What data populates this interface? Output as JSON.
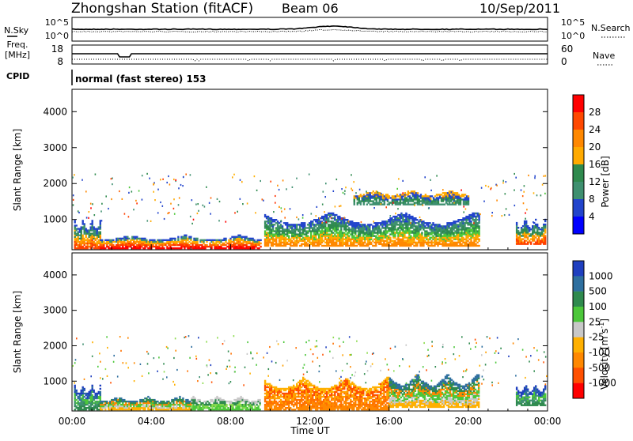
{
  "header": {
    "station_title": "Zhongshan Station (fitACF)",
    "beam": "Beam 06",
    "date": "10/Sep/2011"
  },
  "aux_panels": {
    "nsky_label": "N.Sky",
    "nsearch_label": "N.Search",
    "nsky_ticks": [
      "10^5",
      "10^0"
    ],
    "nsearch_ticks": [
      "10^5",
      "10^0"
    ],
    "freq_label_1": "Freq.",
    "freq_label_2": "[MHz]",
    "freq_ticks": [
      "18",
      "8"
    ],
    "nave_label": "Nave",
    "nave_ticks": [
      "60",
      "0"
    ],
    "cpid_label": "CPID",
    "cpid_text": "normal (fast stereo) 153"
  },
  "chart_data": [
    {
      "type": "heatmap",
      "panel": "power",
      "ylabel": "Slant Range [km]",
      "xlabel": "",
      "x_ticks": [
        "00:00",
        "04:00",
        "08:00",
        "12:00",
        "16:00",
        "20:00",
        "00:00"
      ],
      "y_ticks": [
        "1000",
        "2000",
        "3000",
        "4000"
      ],
      "xlim_hours": [
        0,
        24
      ],
      "ylim_km": [
        180,
        4600
      ],
      "colorbar": {
        "label": "Power [dB]",
        "ticks": [
          "28",
          "24",
          "20",
          "16",
          "12",
          "8",
          "4"
        ],
        "colors": [
          "#ff0000",
          "#ff4800",
          "#ff8800",
          "#ffaa00",
          "#2f8a4e",
          "#3f9070",
          "#2244cc",
          "#0000ff"
        ]
      },
      "echo_regions": [
        {
          "t0": 0.1,
          "t1": 1.4,
          "r0": 180,
          "r1": 1000,
          "level": "mixed-high"
        },
        {
          "t0": 1.4,
          "t1": 9.5,
          "r0": 180,
          "r1": 550,
          "level": "high"
        },
        {
          "t0": 9.7,
          "t1": 20.5,
          "r0": 250,
          "r1": 1200,
          "level": "mixed"
        },
        {
          "t0": 14.2,
          "t1": 20.0,
          "r0": 1400,
          "r1": 1800,
          "level": "low"
        },
        {
          "t0": 22.4,
          "t1": 23.9,
          "r0": 300,
          "r1": 1000,
          "level": "mixed-high"
        }
      ]
    },
    {
      "type": "heatmap",
      "panel": "velocity",
      "ylabel": "Slant Range [km]",
      "xlabel": "Time UT",
      "x_ticks": [
        "00:00",
        "04:00",
        "08:00",
        "12:00",
        "16:00",
        "20:00",
        "00:00"
      ],
      "y_ticks": [
        "1000",
        "2000",
        "3000",
        "4000"
      ],
      "xlim_hours": [
        0,
        24
      ],
      "ylim_km": [
        180,
        4600
      ],
      "colorbar": {
        "label": "Velocity [m s",
        "label_sup": "-1",
        "label_end": "]",
        "ticks": [
          "1000",
          "500",
          "100",
          "25",
          "-25",
          "-100",
          "-500",
          "-1000"
        ],
        "colors": [
          "#1f3fbf",
          "#2e6f9f",
          "#2f8a4e",
          "#4cc73a",
          "#c8c8c8",
          "#ffb000",
          "#ff8800",
          "#ff5000",
          "#ff0000"
        ]
      },
      "echo_regions": [
        {
          "t0": 0.1,
          "t1": 1.4,
          "r0": 180,
          "r1": 900,
          "level": "positive"
        },
        {
          "t0": 1.4,
          "t1": 6.0,
          "r0": 180,
          "r1": 550,
          "level": "mixed"
        },
        {
          "t0": 6.0,
          "t1": 9.5,
          "r0": 180,
          "r1": 550,
          "level": "positive-small"
        },
        {
          "t0": 9.7,
          "t1": 16.0,
          "r0": 180,
          "r1": 1100,
          "level": "negative"
        },
        {
          "t0": 16.0,
          "t1": 20.5,
          "r0": 250,
          "r1": 1200,
          "level": "mixed"
        },
        {
          "t0": 22.4,
          "t1": 23.9,
          "r0": 300,
          "r1": 900,
          "level": "positive"
        }
      ]
    }
  ]
}
